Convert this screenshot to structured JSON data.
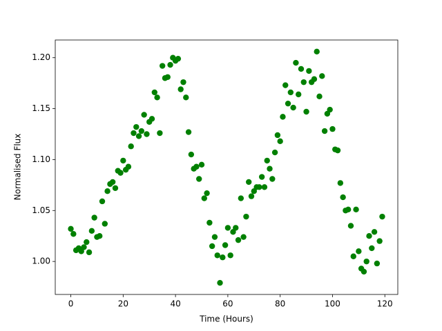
{
  "chart_data": {
    "type": "scatter",
    "x_label": "Time (Hours)",
    "y_label": "Normalised Flux",
    "color": "#008000",
    "x": [
      0,
      1,
      2,
      3,
      4,
      5,
      6,
      7,
      8,
      9,
      10,
      11,
      12,
      13,
      14,
      15,
      16,
      17,
      18,
      19,
      20,
      21,
      22,
      23,
      24,
      25,
      26,
      27,
      28,
      29,
      30,
      31,
      32,
      33,
      34,
      35,
      36,
      37,
      38,
      39,
      40,
      41,
      42,
      43,
      44,
      45,
      46,
      47,
      48,
      49,
      50,
      51,
      52,
      53,
      54,
      55,
      56,
      57,
      58,
      59,
      60,
      61,
      62,
      63,
      64,
      65,
      66,
      67,
      68,
      69,
      70,
      71,
      72,
      73,
      74,
      75,
      76,
      77,
      78,
      79,
      80,
      81,
      82,
      83,
      84,
      85,
      86,
      87,
      88,
      89,
      90,
      91,
      92,
      93,
      94,
      95,
      96,
      97,
      98,
      99,
      100,
      101,
      102,
      103,
      104,
      105,
      106,
      107,
      108,
      109,
      110,
      111,
      112,
      113,
      114,
      115,
      116,
      117,
      118,
      119
    ],
    "values": [
      1.032,
      1.027,
      1.011,
      1.013,
      1.01,
      1.014,
      1.019,
      1.009,
      1.03,
      1.043,
      1.024,
      1.025,
      1.059,
      1.037,
      1.069,
      1.076,
      1.078,
      1.072,
      1.089,
      1.087,
      1.099,
      1.09,
      1.093,
      1.113,
      1.126,
      1.132,
      1.123,
      1.128,
      1.144,
      1.125,
      1.137,
      1.14,
      1.166,
      1.161,
      1.126,
      1.192,
      1.18,
      1.181,
      1.193,
      1.2,
      1.197,
      1.199,
      1.169,
      1.176,
      1.161,
      1.127,
      1.105,
      1.091,
      1.093,
      1.081,
      1.095,
      1.062,
      1.067,
      1.038,
      1.015,
      1.024,
      1.006,
      0.979,
      1.004,
      1.016,
      1.033,
      1.006,
      1.029,
      1.033,
      1.021,
      1.062,
      1.024,
      1.044,
      1.078,
      1.064,
      1.069,
      1.073,
      1.073,
      1.083,
      1.073,
      1.099,
      1.091,
      1.081,
      1.107,
      1.124,
      1.118,
      1.142,
      1.173,
      1.155,
      1.166,
      1.151,
      1.195,
      1.164,
      1.189,
      1.176,
      1.147,
      1.187,
      1.176,
      1.179,
      1.206,
      1.162,
      1.182,
      1.128,
      1.145,
      1.149,
      1.13,
      1.11,
      1.109,
      1.077,
      1.063,
      1.05,
      1.051,
      1.035,
      1.005,
      1.051,
      1.01,
      0.993,
      0.99,
      1.0,
      1.025,
      1.013,
      1.029,
      0.998,
      1.02,
      1.044
    ],
    "xlim": [
      -5.95,
      124.95
    ],
    "ylim": [
      0.9676,
      1.2174
    ],
    "xticks": [
      0,
      20,
      40,
      60,
      80,
      100,
      120
    ],
    "yticks": [
      {
        "value": 1,
        "label": "1.00"
      },
      1.05,
      {
        "value": 1.1,
        "label": "1.10"
      },
      1.15,
      {
        "value": 1.2,
        "label": "1.20"
      }
    ],
    "grid": false
  }
}
